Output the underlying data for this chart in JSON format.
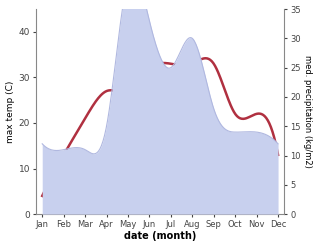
{
  "months": [
    "Jan",
    "Feb",
    "Mar",
    "Apr",
    "May",
    "Jun",
    "Jul",
    "Aug",
    "Sep",
    "Oct",
    "Nov",
    "Dec"
  ],
  "temperature": [
    4,
    13,
    21,
    27,
    27,
    32,
    33,
    33,
    33,
    22,
    22,
    13
  ],
  "precipitation": [
    12,
    11,
    11,
    15,
    40,
    33,
    25,
    30,
    18,
    14,
    14,
    12
  ],
  "temp_color": "#b03040",
  "precip_fill_color": "#c8d0ee",
  "precip_edge_color": "#b0b8e0",
  "xlabel": "date (month)",
  "ylabel_left": "max temp (C)",
  "ylabel_right": "med. precipitation (kg/m2)",
  "ylim_left": [
    0,
    45
  ],
  "ylim_right": [
    0,
    35
  ],
  "yticks_left": [
    0,
    10,
    20,
    30,
    40
  ],
  "yticks_right": [
    0,
    5,
    10,
    15,
    20,
    25,
    30,
    35
  ],
  "bg_color": "#ffffff",
  "fig_bg": "#ffffff"
}
